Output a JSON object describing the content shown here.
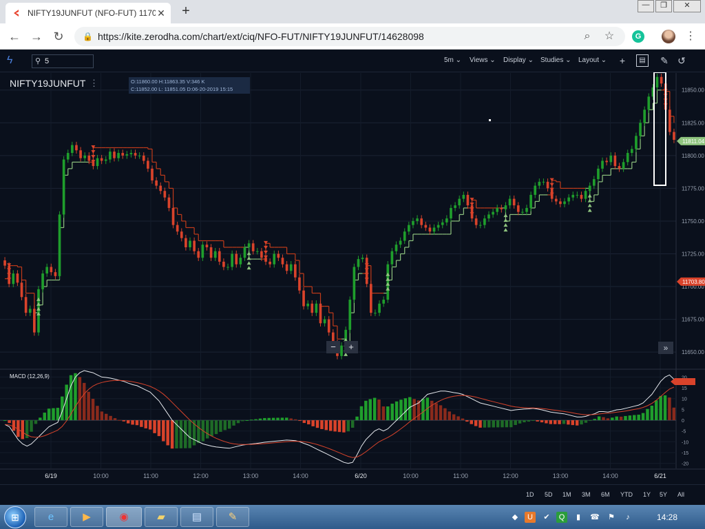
{
  "browser": {
    "tab_title": "NIFTY19JUNFUT (NFO-FUT) 1170",
    "tab_close": "✕",
    "new_tab": "+",
    "url": "https://kite.zerodha.com/chart/ext/ciq/NFO-FUT/NIFTY19JUNFUT/14628098",
    "window_buttons": [
      "—",
      "❐",
      "✕"
    ]
  },
  "toolbar": {
    "search_value": "5",
    "interval": "5m",
    "views": "Views",
    "display": "Display",
    "studies": "Studies",
    "layout": "Layout",
    "crosshair": "+"
  },
  "chart_header": {
    "symbol": "NIFTY19JUNFUT",
    "menu": "⋮",
    "ohlc_line1": "O:11860.00  H:11863.35  V:346 K",
    "ohlc_line2": "C:11852.00  L: 11851.05  D:06-20-2019 15:15"
  },
  "macd_label": "MACD (12,26,9)",
  "zoom": {
    "minus": "−",
    "plus": "+"
  },
  "scroll_end": "»",
  "range_buttons": [
    "1D",
    "5D",
    "1M",
    "3M",
    "6M",
    "YTD",
    "1Y",
    "5Y",
    "All"
  ],
  "taskbar": {
    "clock": "14:28"
  },
  "colors": {
    "up": "#1f9e2c",
    "down": "#d9432b",
    "supertrend_up": "#8fc47f",
    "supertrend_down": "#c23b1a",
    "bg": "#0a101c"
  },
  "chart_data": [
    {
      "type": "candlestick",
      "title": "NIFTY19JUNFUT",
      "ylim": [
        11638,
        11863
      ],
      "y_ticks": [
        11650,
        11675,
        11700,
        11725,
        11750,
        11775,
        11800,
        11825,
        11850
      ],
      "x_tick_labels": [
        "6/19",
        "10:00",
        "11:00",
        "12:00",
        "13:00",
        "14:00",
        "6/20",
        "10:00",
        "11:00",
        "12:00",
        "13:00",
        "14:00",
        "6/21"
      ],
      "price_labels": [
        {
          "value": 11811.04,
          "text": "11811.04",
          "color": "#8fc47f"
        },
        {
          "value": 11703.8,
          "text": "11703.80",
          "color": "#d9432b"
        }
      ],
      "close": [
        11716,
        11702,
        11710,
        11703,
        11692,
        11680,
        11683,
        11665,
        11698,
        11710,
        11715,
        11711,
        11708,
        11755,
        11797,
        11802,
        11808,
        11804,
        11798,
        11800,
        11796,
        11792,
        11798,
        11796,
        11797,
        11803,
        11798,
        11802,
        11800,
        11801,
        11802,
        11800,
        11800,
        11796,
        11790,
        11781,
        11777,
        11773,
        11768,
        11760,
        11747,
        11742,
        11737,
        11730,
        11735,
        11727,
        11722,
        11732,
        11730,
        11722,
        11727,
        11719,
        11715,
        11715,
        11725,
        11717,
        11722,
        11730,
        11733,
        11727,
        11727,
        11722,
        11719,
        11717,
        11725,
        11722,
        11717,
        11712,
        11717,
        11707,
        11697,
        11685,
        11687,
        11680,
        11687,
        11672,
        11675,
        11665,
        11657,
        11647,
        11655,
        11667,
        11690,
        11715,
        11721,
        11722,
        11702,
        11680,
        11680,
        11687,
        11690,
        11717,
        11727,
        11732,
        11735,
        11742,
        11747,
        11750,
        11752,
        11747,
        11745,
        11742,
        11745,
        11747,
        11749,
        11752,
        11760,
        11762,
        11767,
        11770,
        11762,
        11752,
        11747,
        11747,
        11752,
        11755,
        11757,
        11760,
        11759,
        11762,
        11767,
        11762,
        11757,
        11757,
        11760,
        11770,
        11777,
        11780,
        11780,
        11775,
        11767,
        11765,
        11763,
        11765,
        11768,
        11770,
        11770,
        11767,
        11773,
        11777,
        11782,
        11790,
        11796,
        11795,
        11800,
        11792,
        11790,
        11795,
        11802,
        11805,
        11815,
        11825,
        11835,
        11845,
        11852,
        11860,
        11855,
        11835,
        11818,
        11812
      ]
    },
    {
      "type": "macd",
      "title": "MACD (12,26,9)",
      "ylim": [
        -22,
        23
      ],
      "y_ticks": [
        -20,
        -15,
        -10,
        -5,
        0,
        5,
        10,
        15,
        20
      ],
      "macd": [
        -2,
        -3,
        -6,
        -9,
        -11,
        -12,
        -11,
        -9,
        -7,
        -5,
        -3,
        -2,
        -1,
        4,
        10,
        16,
        20,
        22,
        23,
        22.5,
        22,
        21,
        20,
        19.8,
        19.5,
        19,
        18.5,
        18,
        17.2,
        16.5,
        16,
        15,
        14,
        13,
        11,
        9,
        6,
        3,
        0,
        -2,
        -4,
        -6,
        -8,
        -9,
        -10,
        -11,
        -11.5,
        -12,
        -12.4,
        -12.6,
        -12.8,
        -13,
        -12.5,
        -12,
        -11.5,
        -11.2,
        -11,
        -10.8,
        -10.5,
        -10.2,
        -10,
        -9.8,
        -9.6,
        -9.4,
        -9.2,
        -9.3,
        -9.5,
        -10,
        -10.8,
        -11.5,
        -12.5,
        -13.5,
        -14.5,
        -15.5,
        -16.5,
        -17.5,
        -18.5,
        -19.5,
        -20,
        -19.5,
        -16,
        -12,
        -9,
        -7,
        -5,
        -4,
        -5,
        -4,
        -2,
        0,
        2,
        4,
        6,
        7,
        8,
        10,
        12,
        12.5,
        13,
        13.5,
        13.5,
        13.2,
        12.8,
        12.5,
        12,
        11,
        10,
        9,
        8,
        7.5,
        7,
        6.5,
        6,
        5.5,
        5,
        4.5,
        4.8,
        5,
        5.2,
        5.3,
        5.5,
        5.2,
        4.8,
        4.3,
        3.8,
        3.5,
        3.2,
        3,
        2.5,
        2,
        1.5,
        1.5,
        1.8,
        2.5,
        3,
        4,
        4,
        3.8,
        4.2,
        4.8,
        5,
        5.5,
        6,
        6.5,
        7,
        8,
        10,
        12,
        15,
        18,
        20,
        21,
        19
      ]
    }
  ]
}
